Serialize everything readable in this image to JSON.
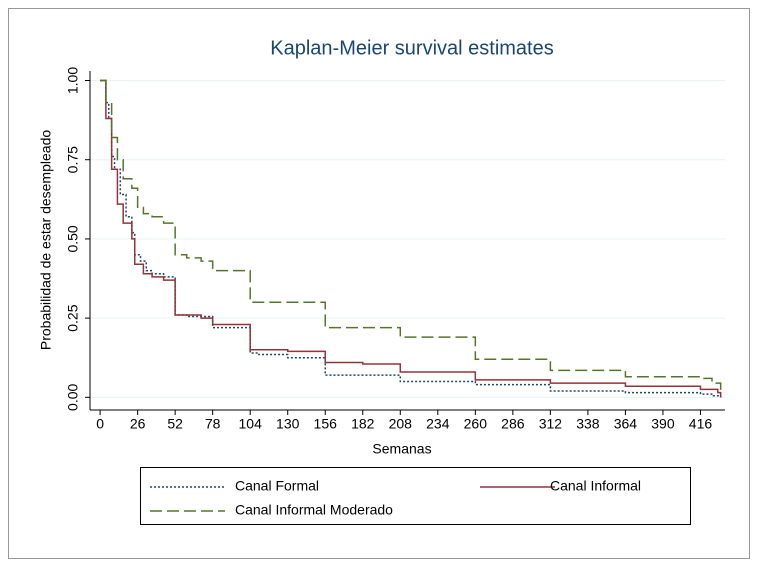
{
  "chart_data": {
    "type": "step",
    "title": "Kaplan-Meier survival estimates",
    "x_label": "Semanas",
    "y_label": "Probabilidad de estar desempleado",
    "xlim": [
      -7,
      433
    ],
    "ylim": [
      -0.04,
      1.03
    ],
    "xticks": [
      0,
      26,
      52,
      78,
      104,
      130,
      156,
      182,
      208,
      234,
      260,
      286,
      312,
      338,
      364,
      390,
      416
    ],
    "yticks": [
      {
        "value": 0,
        "label": "0.00"
      },
      {
        "value": 0.25,
        "label": "0.25"
      },
      {
        "value": 0.5,
        "label": "0.50"
      },
      {
        "value": 0.75,
        "label": "0.75"
      },
      {
        "value": 1,
        "label": "1.00"
      }
    ],
    "grid": true,
    "series": [
      {
        "name": "Canal Formal",
        "color": "#1a476f",
        "dash": "dotted",
        "x": [
          0,
          4,
          6,
          8,
          10,
          14,
          18,
          22,
          24,
          28,
          32,
          36,
          44,
          52,
          60,
          78,
          104,
          110,
          130,
          156,
          208,
          260,
          312,
          364,
          416,
          425,
          430
        ],
        "values": [
          1.0,
          0.93,
          0.88,
          0.76,
          0.72,
          0.64,
          0.57,
          0.52,
          0.45,
          0.43,
          0.4,
          0.39,
          0.38,
          0.26,
          0.255,
          0.22,
          0.14,
          0.135,
          0.125,
          0.07,
          0.05,
          0.04,
          0.02,
          0.015,
          0.01,
          0.005,
          0
        ]
      },
      {
        "name": "Canal Informal",
        "color": "#90353b",
        "dash": "solid",
        "x": [
          0,
          4,
          8,
          12,
          16,
          22,
          24,
          30,
          36,
          44,
          52,
          70,
          78,
          104,
          130,
          156,
          182,
          208,
          260,
          312,
          364,
          416,
          428,
          430
        ],
        "values": [
          1.0,
          0.88,
          0.72,
          0.61,
          0.55,
          0.5,
          0.42,
          0.39,
          0.38,
          0.37,
          0.26,
          0.25,
          0.23,
          0.15,
          0.145,
          0.11,
          0.105,
          0.08,
          0.055,
          0.045,
          0.035,
          0.025,
          0.015,
          0
        ]
      },
      {
        "name": "Canal Informal Moderado",
        "color": "#55752f",
        "dash": "dashed",
        "x": [
          0,
          4,
          8,
          12,
          16,
          22,
          26,
          30,
          36,
          44,
          52,
          60,
          70,
          78,
          104,
          156,
          208,
          260,
          312,
          364,
          416,
          424,
          430
        ],
        "values": [
          1.0,
          0.93,
          0.82,
          0.75,
          0.69,
          0.66,
          0.6,
          0.58,
          0.57,
          0.55,
          0.45,
          0.44,
          0.43,
          0.4,
          0.3,
          0.22,
          0.19,
          0.12,
          0.085,
          0.065,
          0.06,
          0.045,
          0.02
        ]
      }
    ],
    "legend_position": "bottom"
  }
}
